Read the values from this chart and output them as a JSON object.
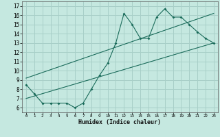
{
  "title": "",
  "xlabel": "Humidex (Indice chaleur)",
  "bg_color": "#c5e8e0",
  "grid_color": "#a8cfc8",
  "line_color": "#1a6b5a",
  "xlim": [
    -0.5,
    23.5
  ],
  "ylim": [
    5.5,
    17.5
  ],
  "xticks": [
    0,
    1,
    2,
    3,
    4,
    5,
    6,
    7,
    8,
    9,
    10,
    11,
    12,
    13,
    14,
    15,
    16,
    17,
    18,
    19,
    20,
    21,
    22,
    23
  ],
  "yticks": [
    6,
    7,
    8,
    9,
    10,
    11,
    12,
    13,
    14,
    15,
    16,
    17
  ],
  "data_x": [
    0,
    1,
    2,
    3,
    4,
    5,
    6,
    7,
    8,
    9,
    10,
    11,
    12,
    13,
    14,
    15,
    16,
    17,
    18,
    19,
    20,
    21,
    22,
    23
  ],
  "data_y": [
    8.5,
    7.5,
    6.5,
    6.5,
    6.5,
    6.5,
    6.0,
    6.5,
    8.0,
    9.5,
    10.8,
    13.0,
    16.2,
    15.0,
    13.5,
    13.5,
    15.8,
    16.7,
    15.8,
    15.8,
    15.0,
    14.2,
    13.5,
    13.0
  ],
  "line1_x": [
    0,
    23
  ],
  "line1_y": [
    7.0,
    13.0
  ],
  "line2_x": [
    0,
    23
  ],
  "line2_y": [
    9.2,
    16.2
  ]
}
